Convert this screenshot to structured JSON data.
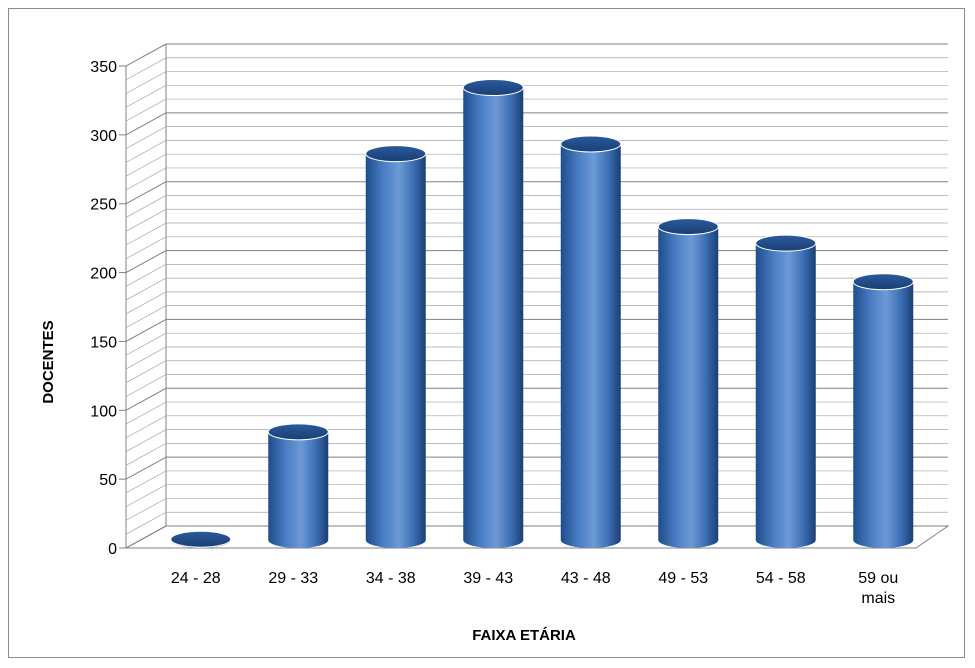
{
  "chart_data": {
    "type": "bar",
    "style": "3d-cylinder",
    "categories": [
      "24 - 28",
      "29 - 33",
      "34 - 38",
      "39 - 43",
      "43 - 48",
      "49 - 53",
      "54 - 58",
      "59 ou\nmais"
    ],
    "values": [
      2,
      80,
      282,
      330,
      289,
      229,
      217,
      189
    ],
    "xlabel": "FAIXA ETÁRIA",
    "ylabel": "DOCENTES",
    "ylim": [
      0,
      350
    ],
    "yticks": [
      0,
      50,
      100,
      150,
      200,
      250,
      300,
      350
    ],
    "grid": true,
    "legend": "none",
    "colors": {
      "bar": "#4a7ec4",
      "bar_dark": "#1f4d8c",
      "bar_light": "#8ab4e8",
      "grid": "#808080"
    }
  }
}
